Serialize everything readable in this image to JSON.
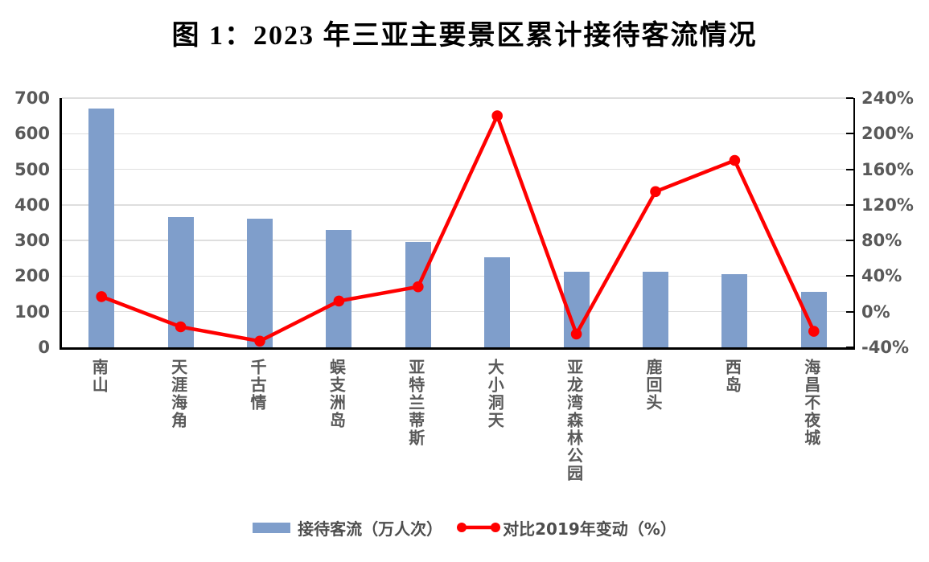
{
  "title": "图 1：2023 年三亚主要景区累计接待客流情况",
  "colors": {
    "bar": "#7f9ecb",
    "line": "#ff0000",
    "grid": "#dedede",
    "axis_line": "#000000",
    "axis_text": "#595959",
    "title_text": "#000000",
    "background": "#ffffff"
  },
  "chart_data": {
    "type": "bar+line combo",
    "title": "图 1：2023 年三亚主要景区累计接待客流情况",
    "categories": [
      "南山",
      "天涯海角",
      "千古情",
      "蜈支洲岛",
      "亚特兰蒂斯",
      "大小洞天",
      "亚龙湾森林公园",
      "鹿回头",
      "西岛",
      "海昌不夜城"
    ],
    "series": [
      {
        "name": "接待客流（万人次）",
        "type": "bar",
        "axis": "left",
        "color": "#7f9ecb",
        "values": [
          670,
          365,
          362,
          330,
          295,
          252,
          213,
          213,
          205,
          155
        ]
      },
      {
        "name": "对比2019年变动（%）",
        "type": "line",
        "axis": "right",
        "color": "#ff0000",
        "values": [
          17,
          -17,
          -33,
          12,
          28,
          220,
          -25,
          135,
          170,
          -22
        ]
      }
    ],
    "left_axis": {
      "min": 0,
      "max": 700,
      "step": 100,
      "ticks": [
        "700",
        "600",
        "500",
        "400",
        "300",
        "200",
        "100",
        "0"
      ]
    },
    "right_axis": {
      "min": -40,
      "max": 240,
      "step": 40,
      "ticks": [
        "240%",
        "200%",
        "160%",
        "120%",
        "80%",
        "40%",
        "0%",
        "-40%"
      ]
    },
    "grid": true,
    "legend_position": "bottom"
  },
  "legend": {
    "bar_label": "接待客流（万人次）",
    "line_label": "对比2019年变动（%）"
  }
}
